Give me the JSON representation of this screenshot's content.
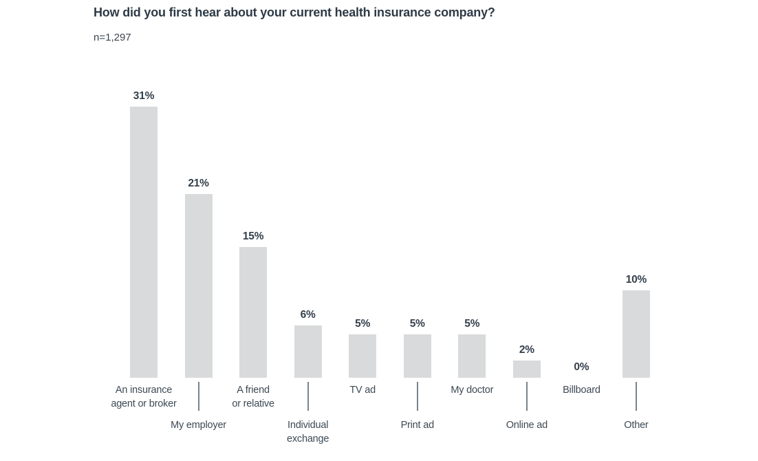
{
  "header": {
    "title": "How did you first hear about your current health insurance company?",
    "sample_size": "n=1,297"
  },
  "chart_data": {
    "type": "bar",
    "title": "How did you first hear about your current health insurance company?",
    "subtitle": "n=1,297",
    "categories": [
      "An insurance agent or broker",
      "My employer",
      "A friend or relative",
      "Individual exchange",
      "TV ad",
      "Print ad",
      "My doctor",
      "Online ad",
      "Billboard",
      "Other"
    ],
    "values": [
      31,
      21,
      15,
      6,
      5,
      5,
      5,
      2,
      0,
      10
    ],
    "value_labels": [
      "31%",
      "21%",
      "15%",
      "6%",
      "5%",
      "5%",
      "5%",
      "2%",
      "0%",
      "10%"
    ],
    "label_lines": [
      [
        "An insurance",
        "agent or broker"
      ],
      [
        "My employer"
      ],
      [
        "A friend",
        "or relative"
      ],
      [
        "Individual",
        "exchange"
      ],
      [
        "TV ad"
      ],
      [
        "Print ad"
      ],
      [
        "My doctor"
      ],
      [
        "Online ad"
      ],
      [
        "Billboard"
      ],
      [
        "Other"
      ]
    ],
    "label_rows": [
      1,
      2,
      1,
      2,
      1,
      2,
      1,
      2,
      1,
      2
    ],
    "xlabel": "",
    "ylabel": "",
    "ylim": [
      0,
      35
    ],
    "grid": false,
    "legend": "none",
    "bar_color": "#d9dadb",
    "value_label_color": "#333f4b",
    "category_label_color": "#3d4954",
    "tick_color": "#78828a",
    "title_color": "#2e3a46"
  }
}
